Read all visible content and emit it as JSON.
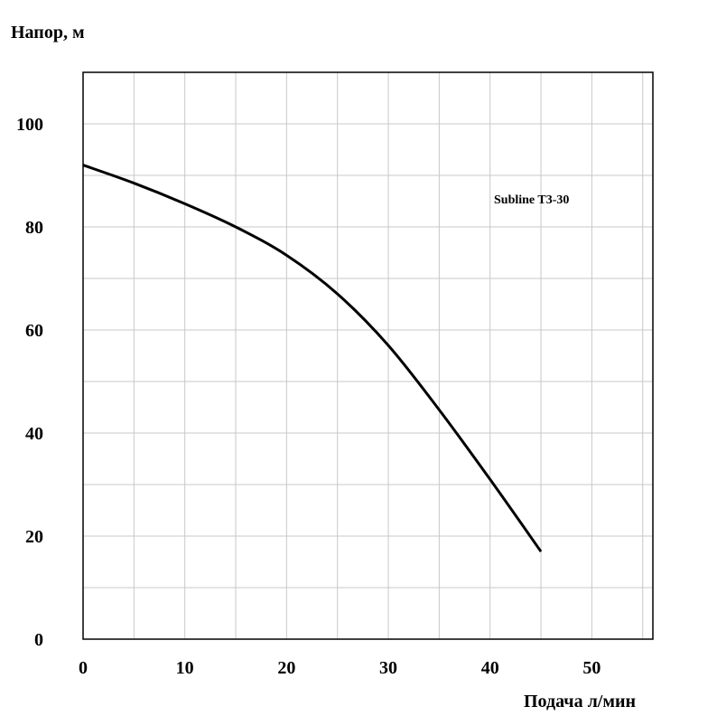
{
  "chart_data": {
    "type": "line",
    "ylabel": "Напор, м",
    "xlabel": "Подача л/мин",
    "xlim": [
      0,
      56
    ],
    "ylim": [
      0,
      110
    ],
    "xticks": [
      0,
      10,
      20,
      30,
      40,
      50
    ],
    "yticks": [
      0,
      20,
      40,
      60,
      80,
      100
    ],
    "x_tick_labels": [
      "0",
      "10",
      "20",
      "30",
      "40",
      "50"
    ],
    "y_tick_labels": [
      "0",
      "20",
      "40",
      "60",
      "80",
      "100"
    ],
    "x_grid_step": 5,
    "y_grid_step": 10,
    "grid": true,
    "series": [
      {
        "name": "Subline T3-30",
        "color": "#000000",
        "x": [
          0,
          5,
          10,
          15,
          20,
          25,
          30,
          35,
          40,
          45
        ],
        "y": [
          92,
          88.5,
          84.5,
          80,
          74.5,
          67,
          57,
          44.5,
          31,
          17
        ]
      }
    ]
  }
}
